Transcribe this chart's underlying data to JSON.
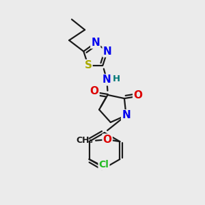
{
  "background_color": "#ebebeb",
  "bond_color": "#1a1a1a",
  "bond_width": 1.6,
  "atom_colors": {
    "N": "#0000ee",
    "O": "#dd0000",
    "S": "#aaaa00",
    "Cl": "#22bb22",
    "H": "#007777",
    "C": "#1a1a1a"
  },
  "font_size_atom": 11,
  "font_size_small": 9.5
}
